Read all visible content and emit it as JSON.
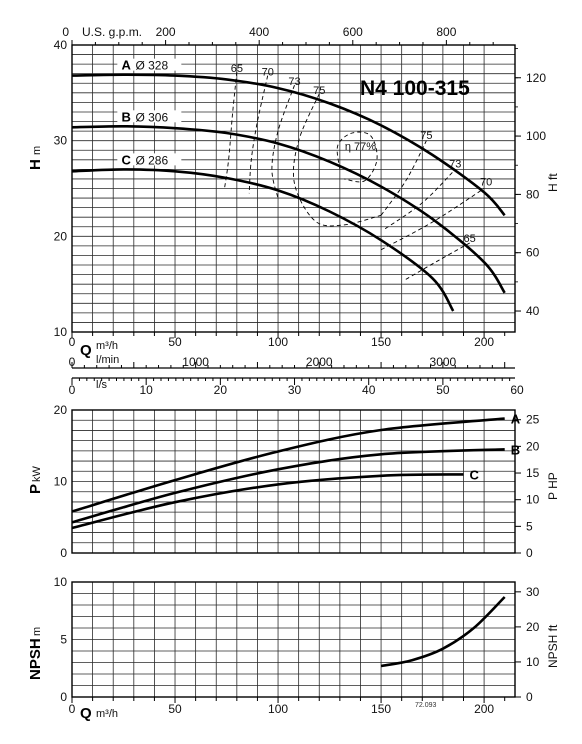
{
  "model": "N4 100-315",
  "chart_code": "72.093",
  "axes": {
    "usgpm_label": "U.S. g.p.m.",
    "usgpm_ticks": [
      "0",
      "200",
      "400",
      "600",
      "800"
    ],
    "q_symbol": "Q",
    "q_unit": "m³/h",
    "q_ticks": [
      "0",
      "50",
      "100",
      "150",
      "200"
    ],
    "lmin_label": "l/min",
    "lmin_ticks": [
      "0",
      "1000",
      "2000",
      "3000"
    ],
    "ls_label": "l/s",
    "ls_ticks": [
      "0",
      "10",
      "20",
      "30",
      "40",
      "50",
      "60"
    ],
    "h_symbol": "H",
    "h_unit": "m",
    "h_ticks": [
      "10",
      "20",
      "30",
      "40"
    ],
    "hft_label": "H ft",
    "hft_ticks": [
      "40",
      "60",
      "80",
      "100",
      "120"
    ],
    "p_symbol": "P",
    "p_unit": "kW",
    "p_ticks": [
      "0",
      "10",
      "20"
    ],
    "php_label": "P HP",
    "php_ticks": [
      "0",
      "5",
      "10",
      "15",
      "20",
      "25"
    ],
    "npsh_symbol": "NPSH",
    "npsh_unit": "m",
    "npsh_ticks": [
      "0",
      "5",
      "10"
    ],
    "npshft_label": "NPSH ft",
    "npshft_ticks": [
      "0",
      "10",
      "20",
      "30"
    ]
  },
  "chart_data": [
    {
      "type": "line",
      "xlabel": "Q m³/h",
      "ylabel": "H m",
      "xlim": [
        0,
        215
      ],
      "ylim": [
        10,
        40
      ],
      "grid": true,
      "series": [
        {
          "name": "A",
          "diameter_label": "Ø 328",
          "x": [
            0,
            25,
            50,
            75,
            100,
            125,
            150,
            175,
            200,
            210
          ],
          "y": [
            36.8,
            36.9,
            36.8,
            36.4,
            35.5,
            33.9,
            31.6,
            28.5,
            24.6,
            22.2
          ]
        },
        {
          "name": "B",
          "diameter_label": "Ø 306",
          "x": [
            0,
            25,
            50,
            75,
            100,
            125,
            150,
            175,
            200,
            210
          ],
          "y": [
            31.4,
            31.5,
            31.3,
            30.8,
            29.7,
            27.8,
            25.2,
            21.8,
            17.3,
            14.1
          ]
        },
        {
          "name": "C",
          "diameter_label": "Ø 286",
          "x": [
            0,
            25,
            50,
            75,
            100,
            125,
            150,
            175,
            185
          ],
          "y": [
            26.8,
            27.0,
            26.8,
            26.1,
            24.8,
            22.6,
            19.6,
            15.6,
            12.2
          ]
        }
      ],
      "efficiency_labels": [
        {
          "text": "65",
          "x": 80,
          "y": 37.2
        },
        {
          "text": "70",
          "x": 95,
          "y": 36.8
        },
        {
          "text": "73",
          "x": 108,
          "y": 35.8
        },
        {
          "text": "75",
          "x": 120,
          "y": 34.9
        },
        {
          "text": "η 77%",
          "x": 140,
          "y": 29.0
        },
        {
          "text": "75",
          "x": 172,
          "y": 30.2
        },
        {
          "text": "73",
          "x": 186,
          "y": 27.2
        },
        {
          "text": "70",
          "x": 201,
          "y": 25.3
        },
        {
          "text": "65",
          "x": 193,
          "y": 19.4
        }
      ]
    },
    {
      "type": "line",
      "xlabel": "Q m³/h",
      "ylabel": "P kW",
      "xlim": [
        0,
        215
      ],
      "ylim": [
        0,
        20
      ],
      "grid": true,
      "series": [
        {
          "name": "A",
          "x": [
            0,
            50,
            100,
            150,
            210
          ],
          "y": [
            5.8,
            10.2,
            14.2,
            17.2,
            18.8
          ]
        },
        {
          "name": "B",
          "x": [
            0,
            50,
            100,
            150,
            210
          ],
          "y": [
            4.3,
            8.4,
            11.7,
            13.8,
            14.5
          ]
        },
        {
          "name": "C",
          "x": [
            0,
            50,
            100,
            150,
            190
          ],
          "y": [
            3.5,
            7.1,
            9.6,
            10.8,
            11.0
          ]
        }
      ]
    },
    {
      "type": "line",
      "xlabel": "Q m³/h",
      "ylabel": "NPSH m",
      "xlim": [
        0,
        215
      ],
      "ylim": [
        0,
        10
      ],
      "grid": true,
      "series": [
        {
          "x": [
            150,
            165,
            180,
            195,
            210
          ],
          "y": [
            2.7,
            3.2,
            4.2,
            6.0,
            8.7
          ]
        }
      ]
    }
  ]
}
